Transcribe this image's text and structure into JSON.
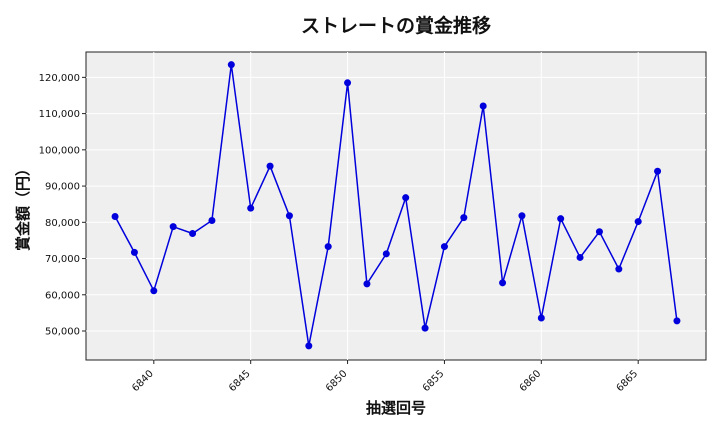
{
  "chart_data": {
    "type": "line",
    "title": "ストレートの賞金推移",
    "xlabel": "抽選回号",
    "ylabel": "賞金額（円）",
    "xlim": [
      6836.5,
      6868.5
    ],
    "ylim": [
      42000,
      127000
    ],
    "xticks": [
      6840,
      6845,
      6850,
      6855,
      6860,
      6865
    ],
    "yticks": [
      50000,
      60000,
      70000,
      80000,
      90000,
      100000,
      110000,
      120000
    ],
    "ytick_labels": [
      "50,000",
      "60,000",
      "70,000",
      "80,000",
      "90,000",
      "100,000",
      "110,000",
      "120,000"
    ],
    "grid": true,
    "series": [
      {
        "color": "#0000dd",
        "x": [
          6838,
          6839,
          6840,
          6841,
          6842,
          6843,
          6844,
          6845,
          6846,
          6847,
          6848,
          6849,
          6850,
          6851,
          6852,
          6853,
          6854,
          6855,
          6856,
          6857,
          6858,
          6859,
          6860,
          6861,
          6862,
          6863,
          6864,
          6865,
          6866,
          6867
        ],
        "y": [
          81600,
          71700,
          61100,
          78800,
          76900,
          80500,
          123500,
          83900,
          95500,
          81800,
          45900,
          73300,
          118500,
          63000,
          71300,
          86800,
          50800,
          73300,
          81300,
          112100,
          63300,
          81800,
          53600,
          81000,
          70300,
          77400,
          67100,
          80200,
          94100,
          52800
        ]
      }
    ]
  }
}
